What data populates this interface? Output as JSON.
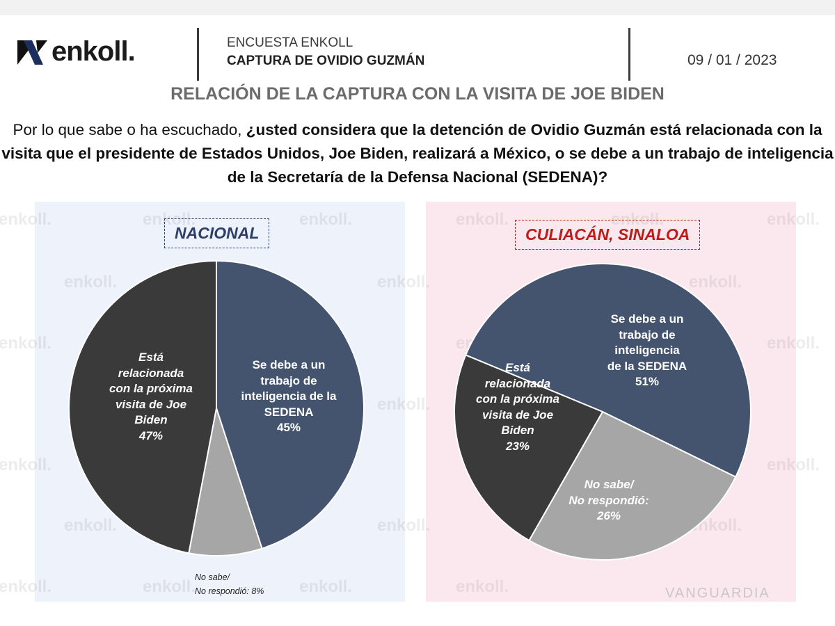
{
  "header": {
    "logo_text": "enkoll.",
    "survey_label": "ENCUESTA ENKOLL",
    "survey_topic": "CAPTURA DE OVIDIO GUZMÁN",
    "date": "09 / 01 / 2023"
  },
  "subtitle": "RELACIÓN DE LA CAPTURA CON LA VISITA DE JOE BIDEN",
  "question": {
    "normal": "Por lo que sabe o ha escuchado, ",
    "bold": "¿usted considera que la detención de Ovidio Guzmán está relacionada con la visita que el presidente de Estados Unidos, Joe Biden, realizará a México, o se debe a un trabajo de inteligencia de la Secretaría de la Defensa Nacional (SEDENA)?"
  },
  "watermark": "enkoll.",
  "credit": "VANGUARDIA",
  "colors": {
    "sedena": "#44546e",
    "biden": "#3a3a3a",
    "nosabe": "#a6a6a6",
    "panel_left": "#eef2fa",
    "panel_right": "#fbe8ef",
    "nacional": "#2e3f66",
    "culiacan": "#c01a1a"
  },
  "chart_data": [
    {
      "type": "pie",
      "title": "NACIONAL",
      "slices": [
        {
          "label": "Se debe a un trabajo de inteligencia de la SEDENA",
          "lines": [
            "Se debe a un",
            "trabajo de",
            "inteligencia de la",
            "SEDENA"
          ],
          "value": 45,
          "value_label": "45%"
        },
        {
          "label": "No sabe/ No respondió",
          "lines": [
            "No sabe/",
            "No respondió:"
          ],
          "value": 8,
          "value_label": "8%"
        },
        {
          "label": "Está relacionada con la próxima visita de Joe Biden",
          "lines": [
            "Está",
            "relacionada",
            "con la próxima",
            "visita de Joe",
            "Biden"
          ],
          "value": 47,
          "value_label": "47%"
        }
      ]
    },
    {
      "type": "pie",
      "title": "CULIACÁN, SINALOA",
      "slices": [
        {
          "label": "Se debe a un trabajo de inteligencia de la SEDENA",
          "lines": [
            "Se debe a un",
            "trabajo de",
            "inteligencia",
            "de la SEDENA"
          ],
          "value": 51,
          "value_label": "51%"
        },
        {
          "label": "No sabe/ No respondió",
          "lines": [
            "No sabe/",
            "No respondió:"
          ],
          "value": 26,
          "value_label": "26%"
        },
        {
          "label": "Está relacionada con la próxima visita de Joe Biden",
          "lines": [
            "Está",
            "relacionada",
            "con la próxima",
            "visita de Joe",
            "Biden"
          ],
          "value": 23,
          "value_label": "23%"
        }
      ]
    }
  ]
}
